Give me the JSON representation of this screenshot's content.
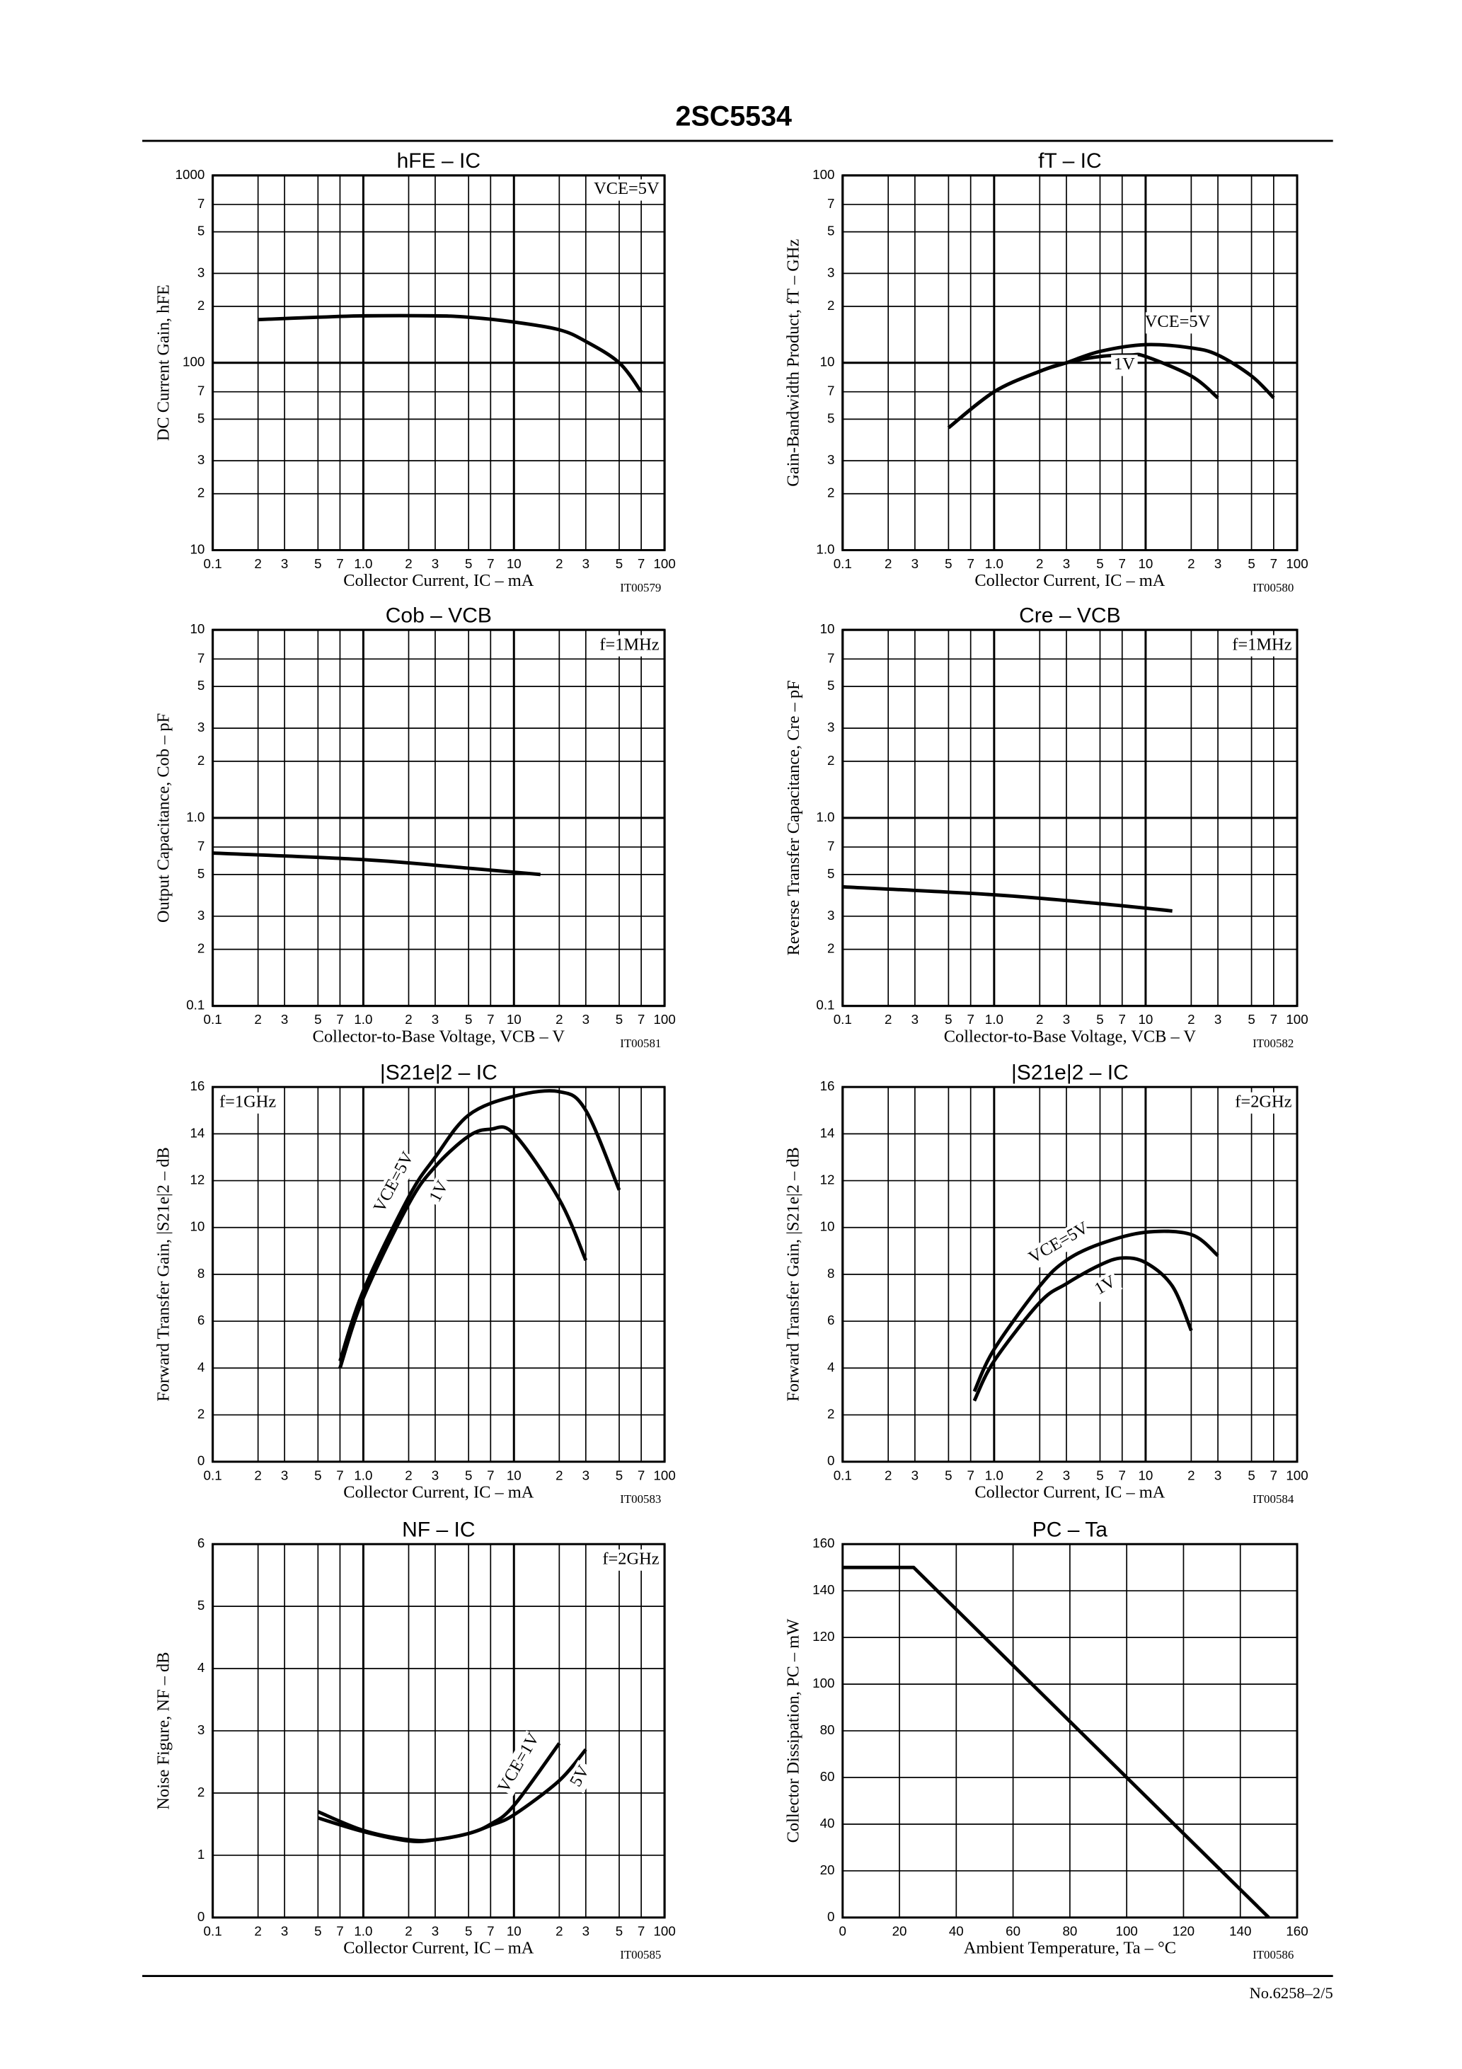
{
  "header": {
    "title": "2SC5534"
  },
  "footer": {
    "page": "No.6258–2/5"
  },
  "chart_data": [
    {
      "type": "line",
      "title": "hFE – IC",
      "x_label": "Collector Current, IC – mA",
      "y_label": "DC Current Gain, hFE",
      "figure_code": "IT00579",
      "xscale": "log",
      "yscale": "log",
      "grid": true,
      "smooth": true,
      "legend": "upper right",
      "xlim": [
        0.1,
        100
      ],
      "ylim": [
        10,
        1000
      ],
      "xticks": [
        0.1,
        {
          "value": 0.2,
          "label": "2"
        },
        {
          "value": 0.3,
          "label": "3"
        },
        {
          "value": 0.5,
          "label": "5"
        },
        {
          "value": 0.7,
          "label": "7"
        },
        {
          "value": 1,
          "label": "1.0"
        },
        2,
        3,
        5,
        7,
        10,
        {
          "value": 20,
          "label": "2"
        },
        {
          "value": 30,
          "label": "3"
        },
        {
          "value": 50,
          "label": "5"
        },
        {
          "value": 70,
          "label": "7"
        },
        100
      ],
      "yticks": [
        10,
        {
          "value": 20,
          "label": "2"
        },
        {
          "value": 30,
          "label": "3"
        },
        {
          "value": 50,
          "label": "5"
        },
        {
          "value": 70,
          "label": "7"
        },
        100,
        {
          "value": 200,
          "label": "2"
        },
        {
          "value": 300,
          "label": "3"
        },
        {
          "value": 500,
          "label": "5"
        },
        {
          "value": 700,
          "label": "7"
        },
        1000
      ],
      "series": [
        {
          "name": "VCE=5V",
          "color": "#000000",
          "x": [
            0.2,
            0.5,
            1,
            3,
            5,
            10,
            20,
            30,
            50,
            70
          ],
          "values": [
            170,
            175,
            178,
            178,
            175,
            165,
            150,
            130,
            100,
            70
          ]
        }
      ]
    },
    {
      "type": "line",
      "title": "fT – IC",
      "x_label": "Collector Current, IC – mA",
      "y_label": "Gain-Bandwidth Product, fT – GHz",
      "figure_code": "IT00580",
      "xscale": "log",
      "yscale": "log",
      "grid": true,
      "smooth": true,
      "xlim": [
        0.1,
        100
      ],
      "ylim": [
        1,
        100
      ],
      "xticks": [
        0.1,
        {
          "value": 0.2,
          "label": "2"
        },
        {
          "value": 0.3,
          "label": "3"
        },
        {
          "value": 0.5,
          "label": "5"
        },
        {
          "value": 0.7,
          "label": "7"
        },
        {
          "value": 1,
          "label": "1.0"
        },
        2,
        3,
        5,
        7,
        10,
        {
          "value": 20,
          "label": "2"
        },
        {
          "value": 30,
          "label": "3"
        },
        {
          "value": 50,
          "label": "5"
        },
        {
          "value": 70,
          "label": "7"
        },
        100
      ],
      "yticks": [
        {
          "value": 1,
          "label": "1.0"
        },
        2,
        3,
        5,
        7,
        10,
        {
          "value": 20,
          "label": "2"
        },
        {
          "value": 30,
          "label": "3"
        },
        {
          "value": 50,
          "label": "5"
        },
        {
          "value": 70,
          "label": "7"
        },
        100
      ],
      "series": [
        {
          "name": "VCE=5V",
          "color": "#000000",
          "x": [
            0.5,
            1,
            2,
            3,
            5,
            10,
            20,
            30,
            50,
            70
          ],
          "values": [
            4.5,
            7,
            9,
            10,
            11.5,
            12.5,
            12,
            11,
            8.5,
            6.5
          ]
        },
        {
          "name": "1V",
          "color": "#000000",
          "x": [
            0.5,
            1,
            2,
            3,
            5,
            8,
            10,
            20,
            30
          ],
          "values": [
            4.5,
            7,
            9,
            10,
            10.8,
            11,
            10.8,
            8.5,
            6.5
          ]
        }
      ]
    },
    {
      "type": "line",
      "title": "Cob – VCB",
      "x_label": "Collector-to-Base Voltage, VCB – V",
      "y_label": "Output Capacitance, Cob – pF",
      "figure_code": "IT00581",
      "annotations": [
        "f=1MHz"
      ],
      "xscale": "log",
      "yscale": "log",
      "grid": true,
      "smooth": true,
      "xlim": [
        0.1,
        100
      ],
      "ylim": [
        0.1,
        10
      ],
      "xticks": [
        0.1,
        {
          "value": 0.2,
          "label": "2"
        },
        {
          "value": 0.3,
          "label": "3"
        },
        {
          "value": 0.5,
          "label": "5"
        },
        {
          "value": 0.7,
          "label": "7"
        },
        {
          "value": 1,
          "label": "1.0"
        },
        2,
        3,
        5,
        7,
        10,
        {
          "value": 20,
          "label": "2"
        },
        {
          "value": 30,
          "label": "3"
        },
        {
          "value": 50,
          "label": "5"
        },
        {
          "value": 70,
          "label": "7"
        },
        100
      ],
      "yticks": [
        0.1,
        {
          "value": 0.2,
          "label": "2"
        },
        {
          "value": 0.3,
          "label": "3"
        },
        {
          "value": 0.5,
          "label": "5"
        },
        {
          "value": 0.7,
          "label": "7"
        },
        {
          "value": 1,
          "label": "1.0"
        },
        2,
        3,
        5,
        7,
        10
      ],
      "series": [
        {
          "color": "#000000",
          "x": [
            0.1,
            1,
            5,
            15
          ],
          "values": [
            0.65,
            0.6,
            0.54,
            0.5
          ]
        }
      ]
    },
    {
      "type": "line",
      "title": "Cre – VCB",
      "x_label": "Collector-to-Base Voltage, VCB – V",
      "y_label": "Reverse Transfer Capacitance, Cre – pF",
      "figure_code": "IT00582",
      "annotations": [
        "f=1MHz"
      ],
      "xscale": "log",
      "yscale": "log",
      "grid": true,
      "smooth": true,
      "xlim": [
        0.1,
        100
      ],
      "ylim": [
        0.1,
        10
      ],
      "xticks": [
        0.1,
        {
          "value": 0.2,
          "label": "2"
        },
        {
          "value": 0.3,
          "label": "3"
        },
        {
          "value": 0.5,
          "label": "5"
        },
        {
          "value": 0.7,
          "label": "7"
        },
        {
          "value": 1,
          "label": "1.0"
        },
        2,
        3,
        5,
        7,
        10,
        {
          "value": 20,
          "label": "2"
        },
        {
          "value": 30,
          "label": "3"
        },
        {
          "value": 50,
          "label": "5"
        },
        {
          "value": 70,
          "label": "7"
        },
        100
      ],
      "yticks": [
        0.1,
        {
          "value": 0.2,
          "label": "2"
        },
        {
          "value": 0.3,
          "label": "3"
        },
        {
          "value": 0.5,
          "label": "5"
        },
        {
          "value": 0.7,
          "label": "7"
        },
        {
          "value": 1,
          "label": "1.0"
        },
        2,
        3,
        5,
        7,
        10
      ],
      "series": [
        {
          "color": "#000000",
          "x": [
            0.1,
            1,
            5,
            15
          ],
          "values": [
            0.43,
            0.39,
            0.35,
            0.32
          ]
        }
      ]
    },
    {
      "type": "line",
      "title": "|S21e|2 – IC",
      "x_label": "Collector Current, IC – mA",
      "y_label": "Forward Transfer Gain, |S21e|2 – dB",
      "figure_code": "IT00583",
      "annotations": [
        "f=1GHz"
      ],
      "xscale": "log",
      "yscale": "linear",
      "grid": true,
      "smooth": true,
      "xlim": [
        0.1,
        100
      ],
      "ylim": [
        0,
        16
      ],
      "xticks": [
        0.1,
        {
          "value": 0.2,
          "label": "2"
        },
        {
          "value": 0.3,
          "label": "3"
        },
        {
          "value": 0.5,
          "label": "5"
        },
        {
          "value": 0.7,
          "label": "7"
        },
        {
          "value": 1,
          "label": "1.0"
        },
        2,
        3,
        5,
        7,
        10,
        {
          "value": 20,
          "label": "2"
        },
        {
          "value": 30,
          "label": "3"
        },
        {
          "value": 50,
          "label": "5"
        },
        {
          "value": 70,
          "label": "7"
        },
        100
      ],
      "yticks": [
        0,
        2,
        4,
        6,
        8,
        10,
        12,
        14,
        16
      ],
      "series": [
        {
          "name": "VCE=5V",
          "color": "#000000",
          "x": [
            0.7,
            1,
            2,
            3,
            5,
            10,
            20,
            30,
            50
          ],
          "values": [
            4.3,
            7.3,
            11.3,
            13,
            14.8,
            15.6,
            15.8,
            15,
            11.6
          ]
        },
        {
          "name": "1V",
          "color": "#000000",
          "x": [
            0.7,
            1,
            2,
            3,
            5,
            7,
            10,
            20,
            30
          ],
          "values": [
            4,
            7,
            11,
            12.6,
            13.9,
            14.2,
            14,
            11.2,
            8.6
          ]
        }
      ]
    },
    {
      "type": "line",
      "title": "|S21e|2 – IC",
      "x_label": "Collector Current, IC – mA",
      "y_label": "Forward Transfer Gain, |S21e|2 – dB",
      "figure_code": "IT00584",
      "annotations": [
        "f=2GHz"
      ],
      "xscale": "log",
      "yscale": "linear",
      "grid": true,
      "smooth": true,
      "xlim": [
        0.1,
        100
      ],
      "ylim": [
        0,
        16
      ],
      "xticks": [
        0.1,
        {
          "value": 0.2,
          "label": "2"
        },
        {
          "value": 0.3,
          "label": "3"
        },
        {
          "value": 0.5,
          "label": "5"
        },
        {
          "value": 0.7,
          "label": "7"
        },
        {
          "value": 1,
          "label": "1.0"
        },
        2,
        3,
        5,
        7,
        10,
        {
          "value": 20,
          "label": "2"
        },
        {
          "value": 30,
          "label": "3"
        },
        {
          "value": 50,
          "label": "5"
        },
        {
          "value": 70,
          "label": "7"
        },
        100
      ],
      "yticks": [
        0,
        2,
        4,
        6,
        8,
        10,
        12,
        14,
        16
      ],
      "series": [
        {
          "name": "VCE=5V",
          "color": "#000000",
          "x": [
            0.74,
            1,
            2,
            3,
            5,
            10,
            20,
            30
          ],
          "values": [
            3,
            4.8,
            7.5,
            8.6,
            9.3,
            9.8,
            9.7,
            8.8
          ]
        },
        {
          "name": "1V",
          "color": "#000000",
          "x": [
            0.74,
            1,
            2,
            3,
            5,
            7,
            10,
            15,
            20
          ],
          "values": [
            2.6,
            4.3,
            6.8,
            7.6,
            8.4,
            8.7,
            8.5,
            7.5,
            5.6
          ]
        }
      ]
    },
    {
      "type": "line",
      "title": "NF – IC",
      "x_label": "Collector Current, IC – mA",
      "y_label": "Noise Figure, NF – dB",
      "figure_code": "IT00585",
      "annotations": [
        "f=2GHz"
      ],
      "xscale": "log",
      "yscale": "linear",
      "grid": true,
      "smooth": true,
      "xlim": [
        0.1,
        100
      ],
      "ylim": [
        0,
        6
      ],
      "xticks": [
        0.1,
        {
          "value": 0.2,
          "label": "2"
        },
        {
          "value": 0.3,
          "label": "3"
        },
        {
          "value": 0.5,
          "label": "5"
        },
        {
          "value": 0.7,
          "label": "7"
        },
        {
          "value": 1,
          "label": "1.0"
        },
        2,
        3,
        5,
        7,
        10,
        {
          "value": 20,
          "label": "2"
        },
        {
          "value": 30,
          "label": "3"
        },
        {
          "value": 50,
          "label": "5"
        },
        {
          "value": 70,
          "label": "7"
        },
        100
      ],
      "yticks": [
        0,
        1,
        2,
        3,
        4,
        5,
        6
      ],
      "series": [
        {
          "name": "VCE=1V",
          "color": "#000000",
          "x": [
            0.5,
            1,
            2,
            3,
            5,
            7,
            10,
            20
          ],
          "values": [
            1.7,
            1.4,
            1.25,
            1.25,
            1.35,
            1.5,
            1.8,
            2.8
          ]
        },
        {
          "name": "5V",
          "color": "#000000",
          "x": [
            0.5,
            1,
            2,
            3,
            5,
            7,
            10,
            20,
            30
          ],
          "values": [
            1.6,
            1.38,
            1.23,
            1.25,
            1.35,
            1.48,
            1.65,
            2.2,
            2.7
          ]
        }
      ]
    },
    {
      "type": "line",
      "title": "PC – Ta",
      "x_label": "Ambient Temperature, Ta – °C",
      "y_label": "Collector Dissipation, PC – mW",
      "figure_code": "IT00586",
      "xscale": "linear",
      "yscale": "linear",
      "grid": true,
      "smooth": false,
      "xlim": [
        0,
        160
      ],
      "ylim": [
        0,
        160
      ],
      "xticks": [
        0,
        20,
        40,
        60,
        80,
        100,
        120,
        140,
        160
      ],
      "yticks": [
        0,
        20,
        40,
        60,
        80,
        100,
        120,
        140,
        160
      ],
      "series": [
        {
          "color": "#000000",
          "x": [
            0,
            25,
            150
          ],
          "values": [
            150,
            150,
            0
          ]
        }
      ]
    }
  ]
}
